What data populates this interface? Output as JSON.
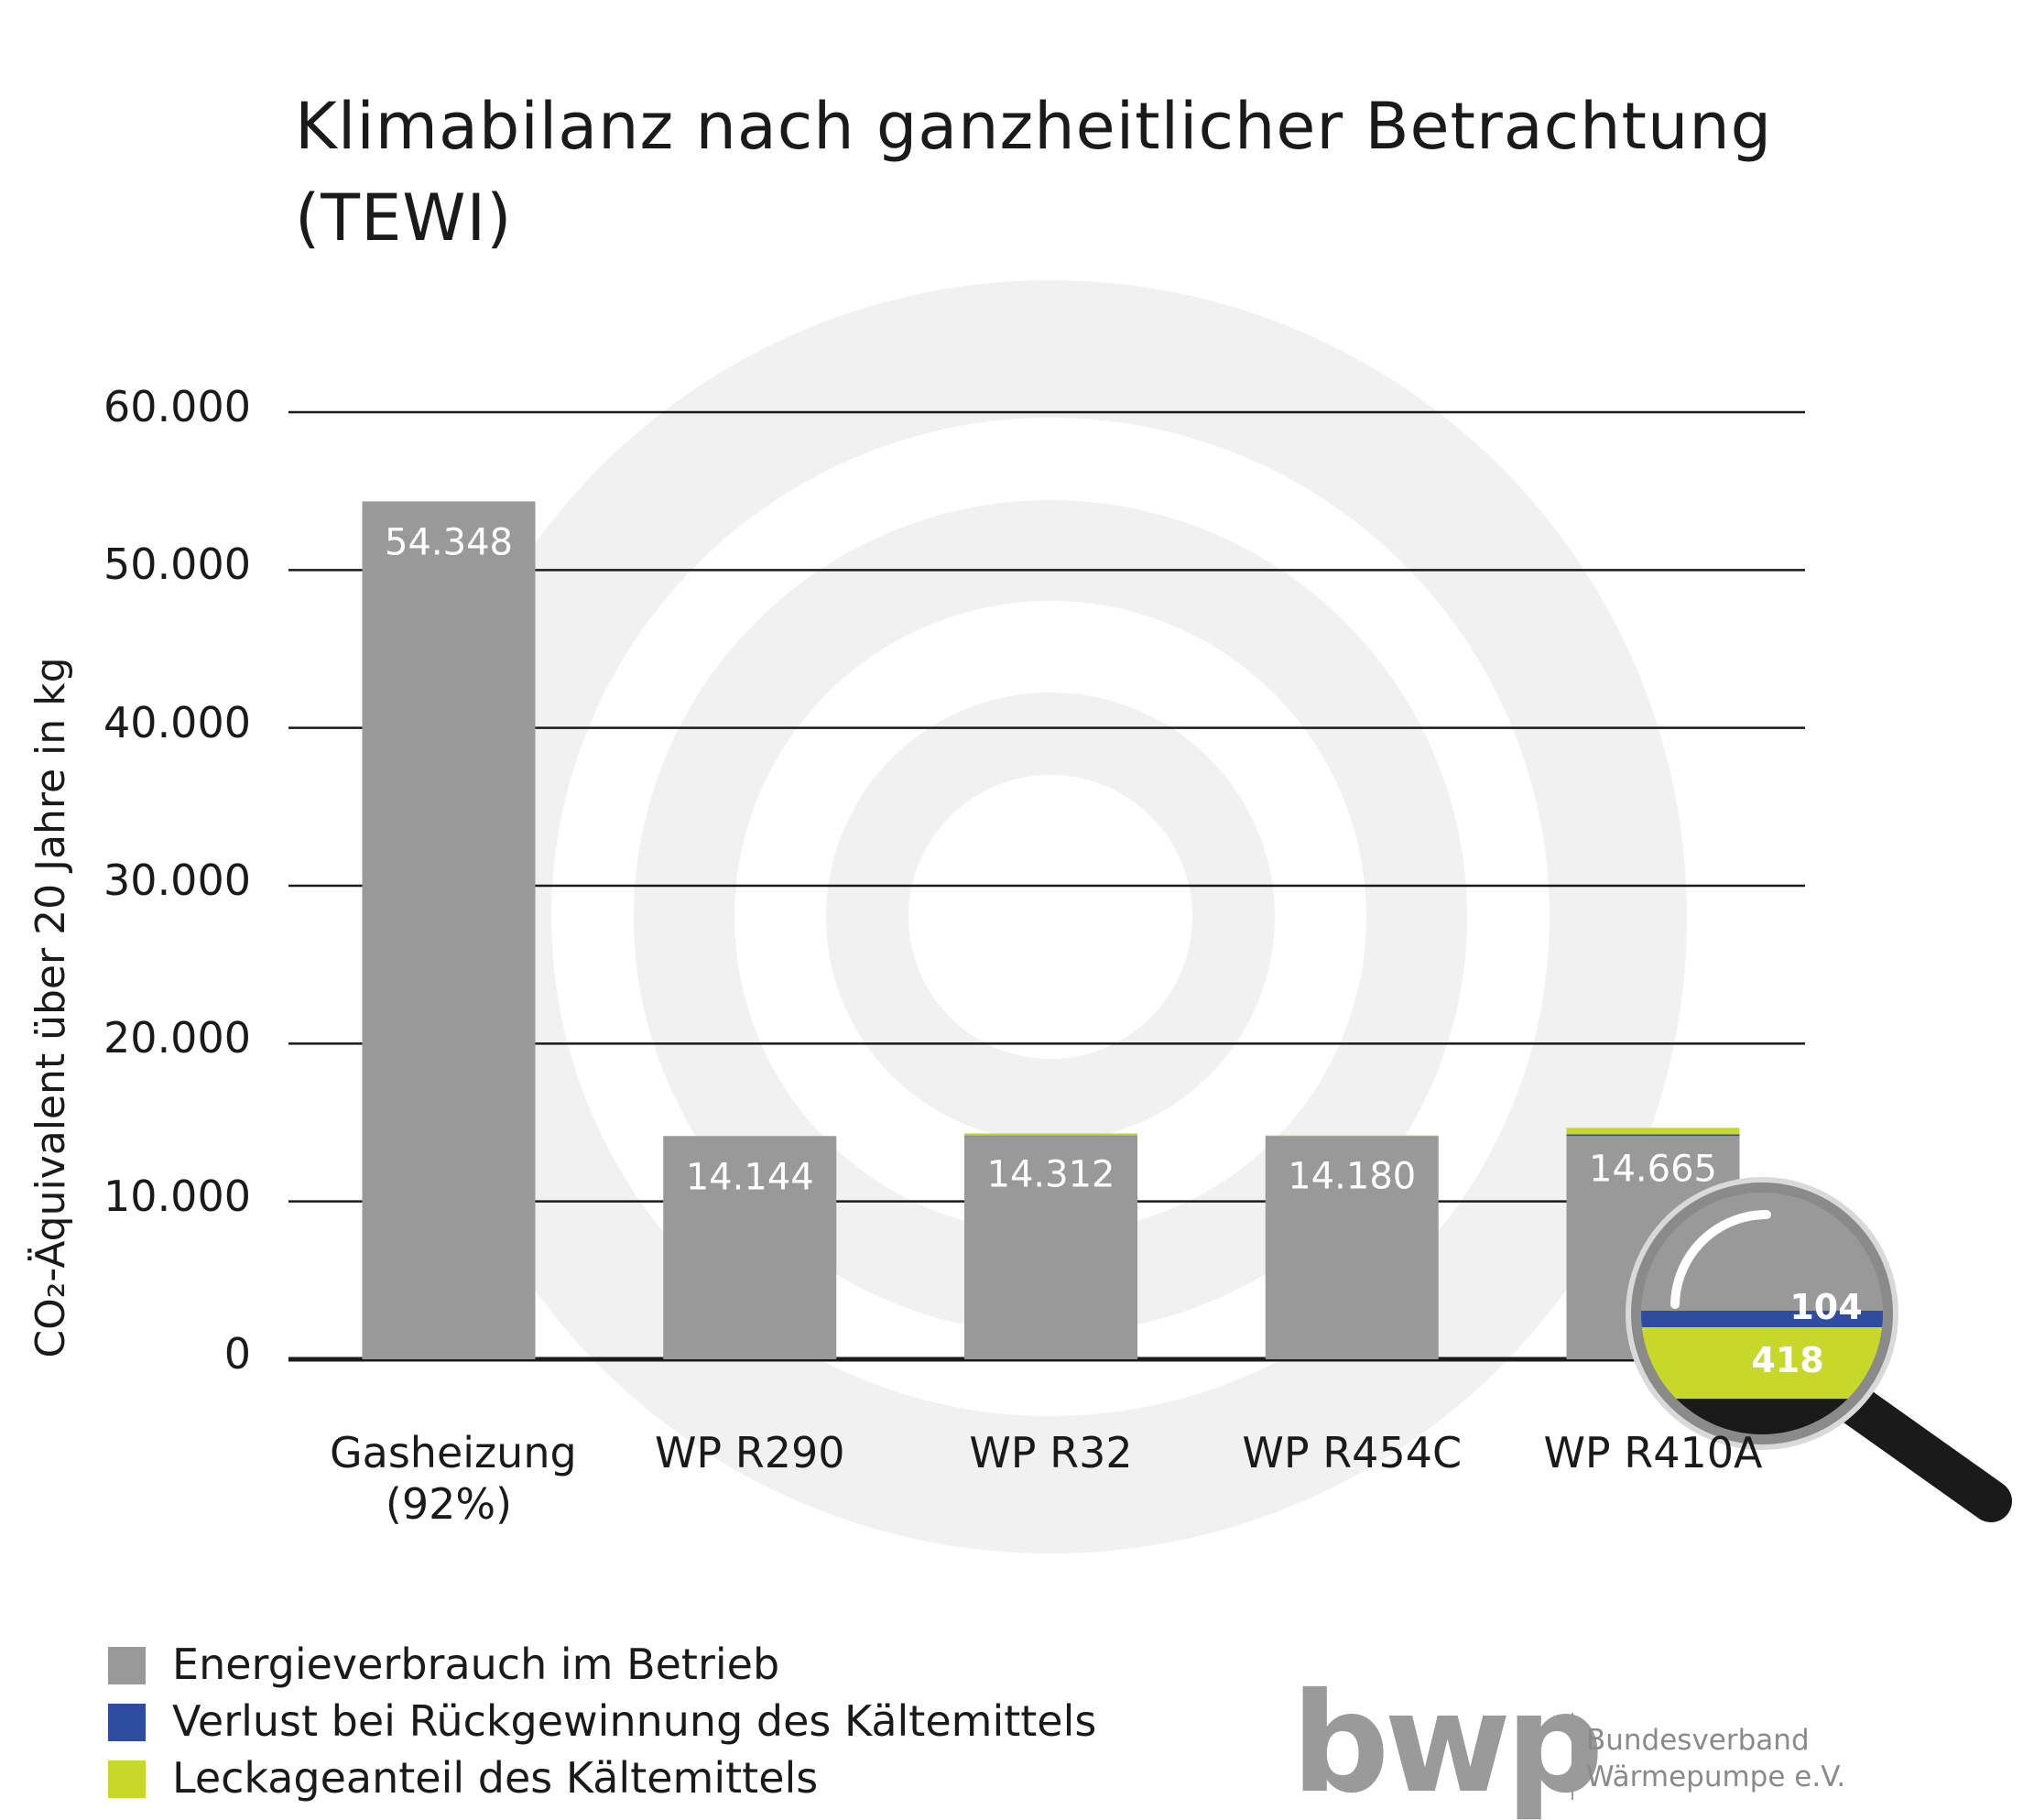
{
  "chart_data": {
    "type": "stacked_bar",
    "title": "Klimabilanz nach ganzheitlicher Betrachtung (TEWI)",
    "y_label": "CO₂-Äquivalent über 20 Jahre in kg",
    "categories": [
      "Gasheizung (92%)",
      "WP R290",
      "WP R32",
      "WP R454C",
      "WP R410A"
    ],
    "series": [
      {
        "name": "Energieverbrauch im Betrieb",
        "color": "#999999",
        "values": [
          54348,
          14143,
          14143,
          14143,
          14143
        ]
      },
      {
        "name": "Verlust bei Rückgewinnung des Kältemittels",
        "color": "#2e4da0",
        "values": [
          0,
          0,
          34,
          7,
          104
        ],
        "value_labels": [
          null,
          null,
          null,
          null,
          "104"
        ]
      },
      {
        "name": "Leckageanteil des Kältemittels",
        "color": "#c8d82b",
        "values": [
          0,
          1,
          135,
          30,
          418
        ],
        "value_labels": [
          null,
          null,
          null,
          null,
          "418"
        ]
      }
    ],
    "totals": {
      "values": [
        54348,
        14144,
        14312,
        14180,
        14665
      ],
      "value_labels": [
        "54.348",
        "14.144",
        "14.312",
        "14.180",
        "14.665"
      ]
    },
    "ylim": [
      0,
      60000
    ],
    "yticks": [
      0,
      {
        "value": 10000,
        "label": "10.000"
      },
      {
        "value": 20000,
        "label": "20.000"
      },
      {
        "value": 30000,
        "label": "30.000"
      },
      {
        "value": 40000,
        "label": "40.000"
      },
      {
        "value": 50000,
        "label": "50.000"
      },
      {
        "value": 60000,
        "label": "60.000"
      }
    ],
    "grid": true,
    "legend": "bottom-left"
  },
  "logo": {
    "mark": "bwp",
    "line1": "Bundesverband",
    "line2": "Wärmepumpe e.V."
  }
}
